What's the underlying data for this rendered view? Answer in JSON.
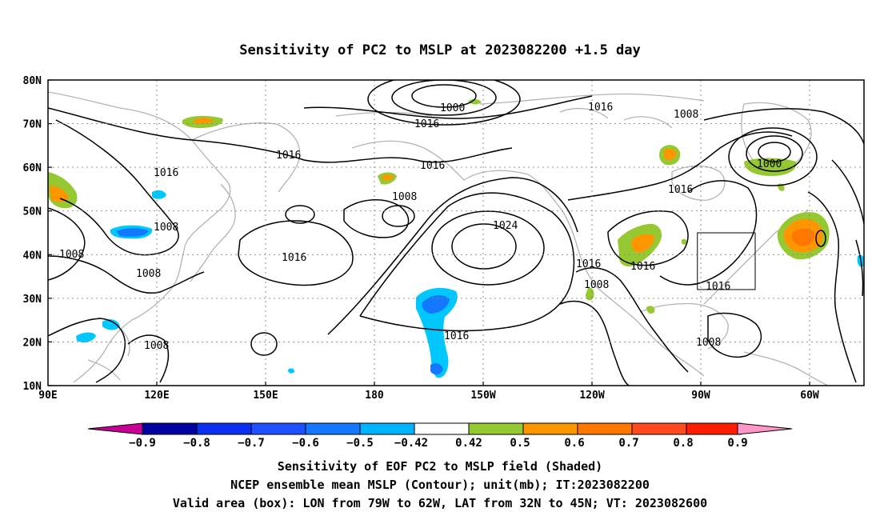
{
  "title": "Sensitivity of PC2 to MSLP at 2023082200 +1.5 day",
  "map": {
    "lon_ticks": [
      "90E",
      "120E",
      "150E",
      "180",
      "150W",
      "120W",
      "90W",
      "60W"
    ],
    "lat_ticks": [
      "80N",
      "70N",
      "60N",
      "50N",
      "40N",
      "30N",
      "20N",
      "10N"
    ],
    "contour_labels": [
      "1000",
      "1016",
      "1016",
      "1008",
      "1016",
      "1016",
      "1008",
      "1016",
      "1008",
      "1016",
      "1008",
      "1008",
      "1024",
      "1016",
      "1016",
      "1008",
      "1016",
      "1008",
      "1016",
      "1000",
      "1016",
      "1008"
    ],
    "valid_box": {
      "lon": [
        -79,
        -62
      ],
      "lat": [
        32,
        45
      ]
    },
    "colors": {
      "neg_09": "#0000a0",
      "neg_08": "#0a2ff0",
      "neg_07": "#1e50ff",
      "neg_06": "#1478ff",
      "neg_05": "#00b4ff",
      "neg_042": "#00c8ff",
      "pos_042": "#96c832",
      "pos_05": "#ff9600",
      "pos_06": "#ff7800",
      "pos_07": "#ff4b1e",
      "pos_08": "#ff1e00",
      "low_end": "#c80096",
      "high_end": "#ff96c8"
    }
  },
  "colorbar": {
    "labels": [
      "−0.9",
      "−0.8",
      "−0.7",
      "−0.6",
      "−0.5",
      "−0.42",
      "0.42",
      "0.5",
      "0.6",
      "0.7",
      "0.8",
      "0.9"
    ]
  },
  "caption": {
    "line1": "Sensitivity of EOF PC2 to MSLP field (Shaded)",
    "line2": "NCEP ensemble mean MSLP (Contour); unit(mb); IT:2023082200",
    "line3": "Valid area (box): LON from 79W to 62W, LAT from 32N to 45N; VT: 2023082600"
  }
}
